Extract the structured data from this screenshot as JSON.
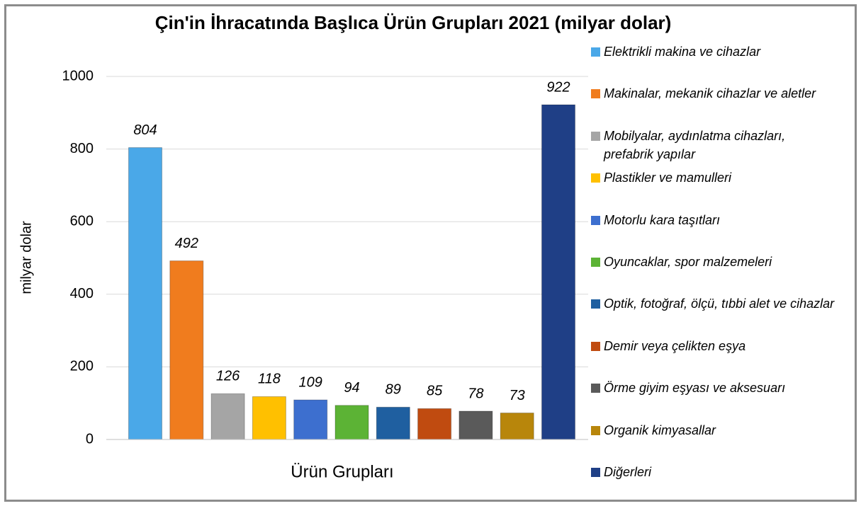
{
  "chart_data": {
    "type": "bar",
    "title": "Çin'in İhracatında Başlıca Ürün Grupları 2021 (milyar dolar)",
    "x_label": "Ürün Grupları",
    "y_label": "milyar dolar",
    "categories": [
      null
    ],
    "series": [
      {
        "name": "Elektrikli makina ve cihazlar",
        "color": "#4aa8e8",
        "values": [
          804
        ]
      },
      {
        "name": "Makinalar, mekanik cihazlar ve aletler",
        "color": "#f07c1e",
        "values": [
          492
        ]
      },
      {
        "name": "Mobilyalar, aydınlatma cihazları, prefabrik yapılar",
        "color": "#a5a5a5",
        "values": [
          126
        ]
      },
      {
        "name": "Plastikler ve mamulleri",
        "color": "#ffc000",
        "values": [
          118
        ]
      },
      {
        "name": "Motorlu kara taşıtları",
        "color": "#3d6fcf",
        "values": [
          109
        ]
      },
      {
        "name": "Oyuncaklar, spor malzemeleri",
        "color": "#5cb335",
        "values": [
          94
        ]
      },
      {
        "name": "Optik, fotoğraf, ölçü, tıbbi alet ve cihazlar",
        "color": "#1f5fa0",
        "values": [
          89
        ]
      },
      {
        "name": "Demir veya çelikten eşya",
        "color": "#c04b10",
        "values": [
          85
        ]
      },
      {
        "name": "Örme giyim eşyası ve aksesuarı",
        "color": "#5a5a5a",
        "values": [
          78
        ]
      },
      {
        "name": "Organik kimyasallar",
        "color": "#b8860b",
        "values": [
          73
        ]
      },
      {
        "name": "Diğerleri",
        "color": "#1f3f86",
        "values": [
          922
        ]
      }
    ],
    "ylim": [
      0,
      1000
    ],
    "yticks": [
      0,
      200,
      400,
      600,
      800,
      1000
    ],
    "grid": true,
    "legend": "right"
  }
}
